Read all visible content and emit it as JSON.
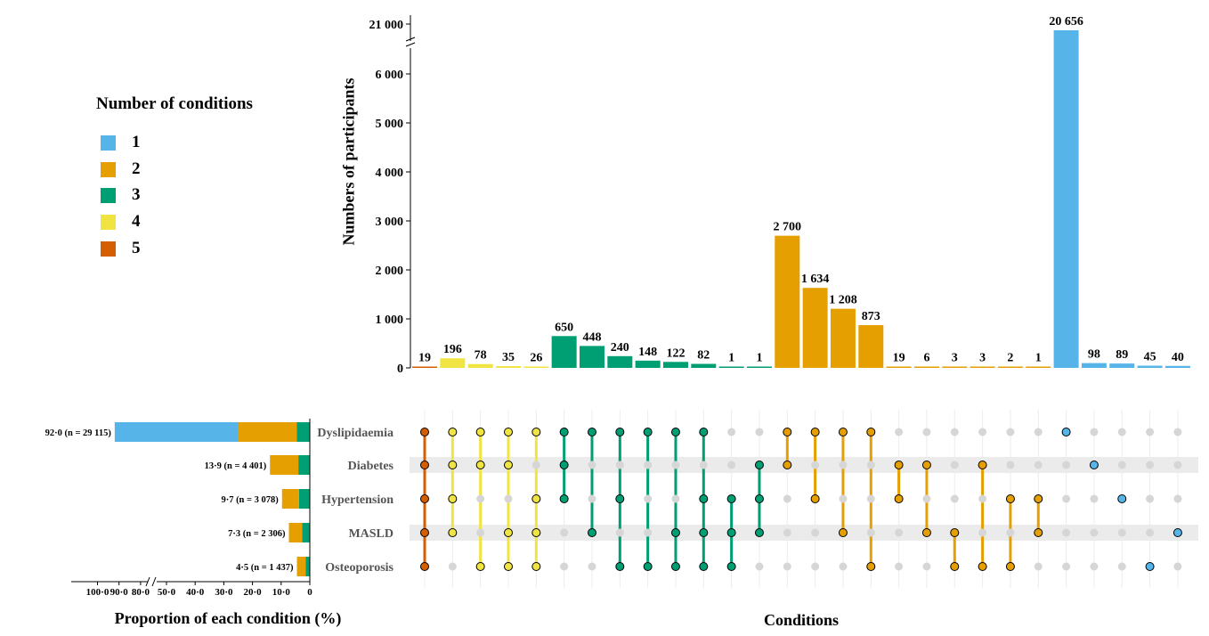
{
  "legend": {
    "title": "Number of conditions",
    "items": [
      {
        "label": "1",
        "color": "#56B4E9"
      },
      {
        "label": "2",
        "color": "#E69F00"
      },
      {
        "label": "3",
        "color": "#009E73"
      },
      {
        "label": "4",
        "color": "#F0E442"
      },
      {
        "label": "5",
        "color": "#D55E00"
      }
    ]
  },
  "chart_data": {
    "type": "bar",
    "ylabel": "Numbers of participants",
    "xlabel": "Conditions",
    "y_ticks": [
      "0",
      "1 000",
      "2 000",
      "3 000",
      "4 000",
      "5 000",
      "6 000",
      "21 000"
    ],
    "y_tick_values": [
      0,
      1000,
      2000,
      3000,
      4000,
      5000,
      6000,
      21000
    ],
    "y_axis_break": [
      6500,
      20500
    ],
    "sets": [
      "Dyslipidaemia",
      "Diabetes",
      "Hypertension",
      "MASLD",
      "Osteoporosis"
    ],
    "intersections": [
      {
        "value": 19,
        "label": "19",
        "degree": 5,
        "members": [
          1,
          1,
          1,
          1,
          1
        ]
      },
      {
        "value": 196,
        "label": "196",
        "degree": 4,
        "members": [
          1,
          1,
          1,
          1,
          0
        ]
      },
      {
        "value": 78,
        "label": "78",
        "degree": 4,
        "members": [
          1,
          1,
          0,
          0,
          1
        ]
      },
      {
        "value": 35,
        "label": "35",
        "degree": 4,
        "members": [
          1,
          1,
          0,
          1,
          1
        ]
      },
      {
        "value": 26,
        "label": "26",
        "degree": 4,
        "members": [
          1,
          0,
          1,
          1,
          1
        ]
      },
      {
        "value": 650,
        "label": "650",
        "degree": 3,
        "members": [
          1,
          1,
          1,
          0,
          0
        ]
      },
      {
        "value": 448,
        "label": "448",
        "degree": 3,
        "members": [
          1,
          0,
          0,
          1,
          0
        ]
      },
      {
        "value": 240,
        "label": "240",
        "degree": 3,
        "members": [
          1,
          0,
          1,
          0,
          1
        ]
      },
      {
        "value": 148,
        "label": "148",
        "degree": 3,
        "members": [
          1,
          0,
          0,
          0,
          1
        ]
      },
      {
        "value": 122,
        "label": "122",
        "degree": 3,
        "members": [
          1,
          0,
          0,
          1,
          1
        ]
      },
      {
        "value": 82,
        "label": "82",
        "degree": 3,
        "members": [
          1,
          0,
          1,
          1,
          1
        ]
      },
      {
        "value": 1,
        "label": "1",
        "degree": 3,
        "members": [
          0,
          0,
          1,
          1,
          1
        ]
      },
      {
        "value": 1,
        "label": "1",
        "degree": 3,
        "members": [
          0,
          1,
          1,
          1,
          0
        ]
      },
      {
        "value": 2700,
        "label": "2 700",
        "degree": 2,
        "members": [
          1,
          1,
          0,
          0,
          0
        ]
      },
      {
        "value": 1634,
        "label": "1 634",
        "degree": 2,
        "members": [
          1,
          0,
          1,
          0,
          0
        ]
      },
      {
        "value": 1208,
        "label": "1 208",
        "degree": 2,
        "members": [
          1,
          0,
          0,
          1,
          0
        ]
      },
      {
        "value": 873,
        "label": "873",
        "degree": 2,
        "members": [
          1,
          0,
          0,
          0,
          1
        ]
      },
      {
        "value": 19,
        "label": "19",
        "degree": 2,
        "members": [
          0,
          1,
          1,
          0,
          0
        ]
      },
      {
        "value": 6,
        "label": "6",
        "degree": 2,
        "members": [
          0,
          1,
          0,
          1,
          0
        ]
      },
      {
        "value": 3,
        "label": "3",
        "degree": 2,
        "members": [
          0,
          0,
          0,
          1,
          1
        ]
      },
      {
        "value": 3,
        "label": "3",
        "degree": 2,
        "members": [
          0,
          1,
          0,
          0,
          1
        ]
      },
      {
        "value": 2,
        "label": "2",
        "degree": 2,
        "members": [
          0,
          0,
          1,
          0,
          1
        ]
      },
      {
        "value": 1,
        "label": "1",
        "degree": 2,
        "members": [
          0,
          0,
          1,
          1,
          0
        ]
      },
      {
        "value": 20656,
        "label": "20 656",
        "degree": 1,
        "members": [
          1,
          0,
          0,
          0,
          0
        ]
      },
      {
        "value": 98,
        "label": "98",
        "degree": 1,
        "members": [
          0,
          1,
          0,
          0,
          0
        ]
      },
      {
        "value": 89,
        "label": "89",
        "degree": 1,
        "members": [
          0,
          0,
          1,
          0,
          0
        ]
      },
      {
        "value": 45,
        "label": "45",
        "degree": 1,
        "members": [
          0,
          0,
          0,
          0,
          1
        ]
      },
      {
        "value": 40,
        "label": "40",
        "degree": 1,
        "members": [
          0,
          0,
          0,
          1,
          0
        ]
      }
    ],
    "set_proportions": {
      "xlabel": "Proportion of each condition (%)",
      "x_ticks_left": [
        "100·0",
        "90·0",
        "80·0"
      ],
      "x_tick_values_left": [
        100,
        90,
        80
      ],
      "x_ticks_right": [
        "50·0",
        "40·0",
        "30·0",
        "20·0",
        "10·0",
        "0"
      ],
      "x_tick_values_right": [
        50,
        40,
        30,
        20,
        10,
        0
      ],
      "axis_break": [
        55,
        75
      ],
      "rows": [
        {
          "set": "Dyslipidaemia",
          "label": "92·0 (n = 29 115)",
          "total": 92.0,
          "segments": [
            {
              "degree": 3,
              "value": 4.5
            },
            {
              "degree": 2,
              "value": 20.5
            },
            {
              "degree": 1,
              "value": 67.0
            }
          ]
        },
        {
          "set": "Diabetes",
          "label": "13·9 (n = 4 401)",
          "total": 13.9,
          "segments": [
            {
              "degree": 3,
              "value": 4.0
            },
            {
              "degree": 2,
              "value": 9.9
            }
          ]
        },
        {
          "set": "Hypertension",
          "label": "9·7 (n = 3 078)",
          "total": 9.7,
          "segments": [
            {
              "degree": 3,
              "value": 3.8
            },
            {
              "degree": 2,
              "value": 5.9
            }
          ]
        },
        {
          "set": "MASLD",
          "label": "7·3 (n = 2 306)",
          "total": 7.3,
          "segments": [
            {
              "degree": 3,
              "value": 2.7
            },
            {
              "degree": 2,
              "value": 4.6
            }
          ]
        },
        {
          "set": "Osteoporosis",
          "label": "4·5 (n = 1 437)",
          "total": 4.5,
          "segments": [
            {
              "degree": 3,
              "value": 1.4
            },
            {
              "degree": 2,
              "value": 3.1
            }
          ]
        }
      ]
    }
  }
}
